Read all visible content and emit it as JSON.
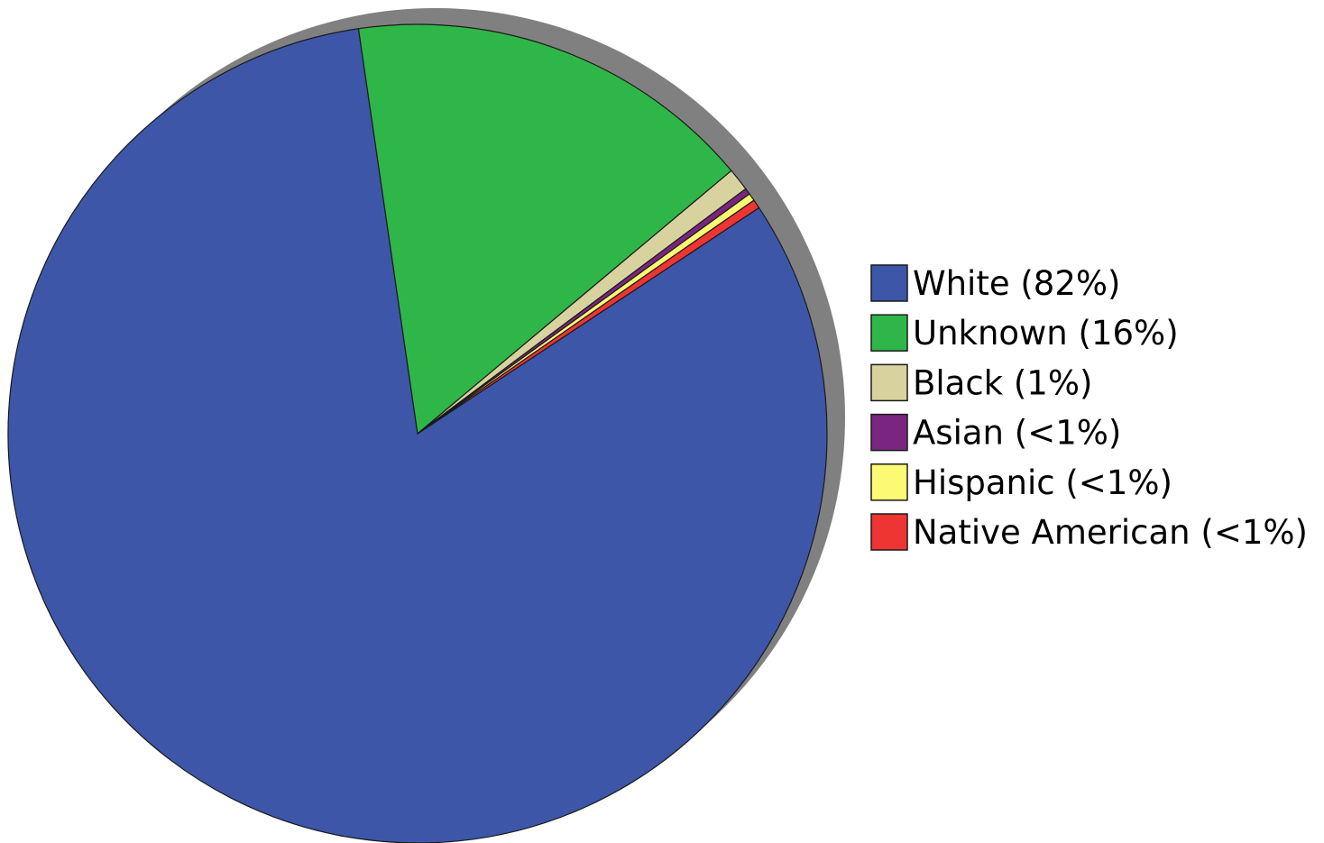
{
  "chart_data": {
    "type": "pie",
    "slices": [
      {
        "label": "White (82%)",
        "value": 82.0,
        "color": "#3d56a8"
      },
      {
        "label": "Unknown (16%)",
        "value": 16.2,
        "color": "#2eb748"
      },
      {
        "label": "Black (1%)",
        "value": 0.9,
        "color": "#d8d29e"
      },
      {
        "label": "Asian (<1%)",
        "value": 0.25,
        "color": "#7a2680"
      },
      {
        "label": "Hispanic (<1%)",
        "value": 0.3,
        "color": "#fbfa72"
      },
      {
        "label": "Native American (<1%)",
        "value": 0.35,
        "color": "#ef3434"
      }
    ],
    "legend_position": "right",
    "shadow_color": "#808080",
    "edge_color": "#1a1a1a"
  }
}
